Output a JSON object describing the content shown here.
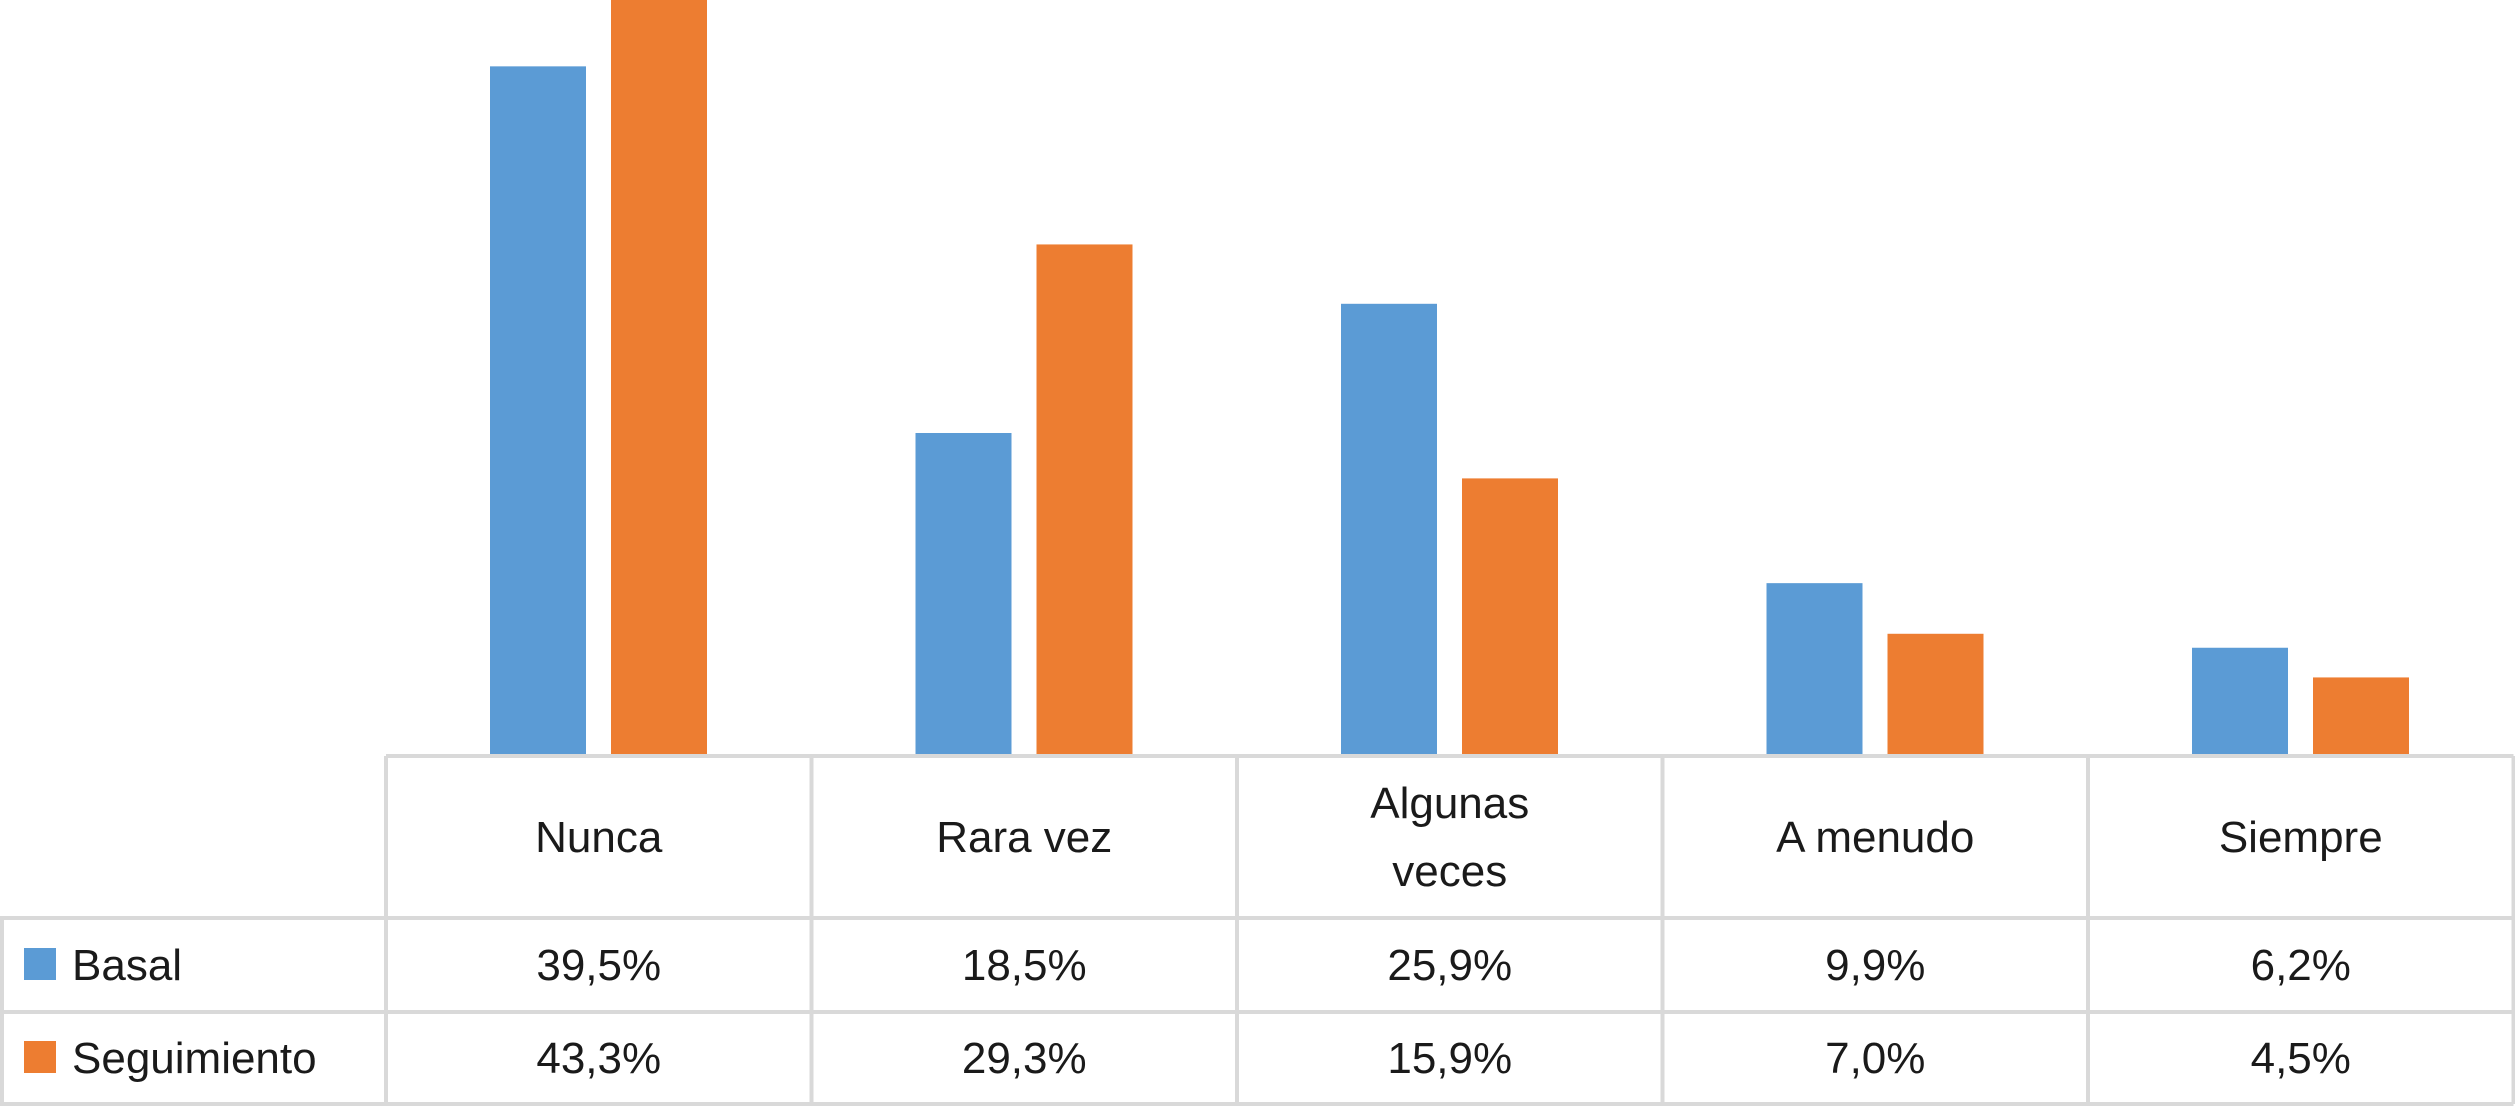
{
  "chart_data": {
    "type": "bar",
    "categories": [
      "Nunca",
      "Rara vez",
      "Algunas veces",
      "A menudo",
      "Siempre"
    ],
    "category_lines": [
      [
        "Nunca"
      ],
      [
        "Rara vez"
      ],
      [
        "Algunas",
        "veces"
      ],
      [
        "A menudo"
      ],
      [
        "Siempre"
      ]
    ],
    "series": [
      {
        "name": "Basal",
        "values": [
          39.5,
          18.5,
          25.9,
          9.9,
          6.2
        ],
        "labels": [
          "39,5%",
          "18,5%",
          "25,9%",
          "9,9%",
          "6,2%"
        ],
        "color": "#5b9bd5"
      },
      {
        "name": "Seguimiento",
        "values": [
          43.3,
          29.3,
          15.9,
          7.0,
          4.5
        ],
        "labels": [
          "43,3%",
          "29,3%",
          "15,9%",
          "7,0%",
          "4,5%"
        ],
        "color": "#ed7d31"
      }
    ],
    "ylim": [
      0,
      43.3
    ],
    "grid": false,
    "legend": "data-table"
  }
}
